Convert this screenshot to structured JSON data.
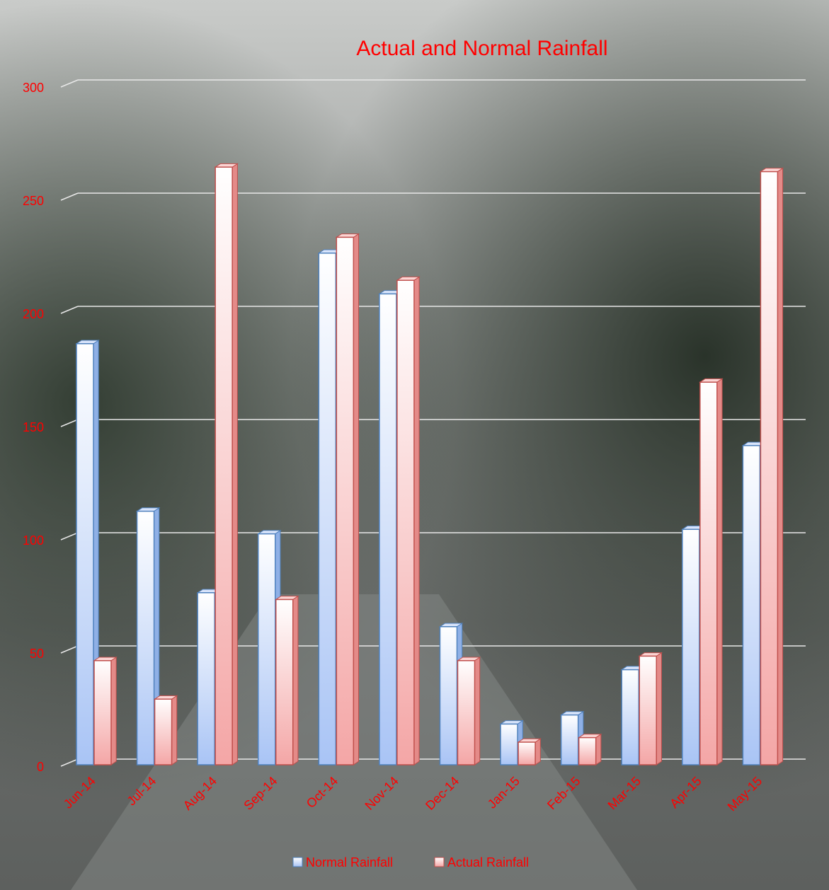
{
  "colors": {
    "title": "#ff0000",
    "axis_labels": "#ff0000",
    "normal_face_top": "#ffffff",
    "normal_face_bottom": "#a9c4f5",
    "normal_edge": "#4f81bd",
    "actual_face_top": "#ffffff",
    "actual_face_bottom": "#f4a6a6",
    "actual_edge": "#c0504d",
    "gridline": "#e8e8e8",
    "legend_text": "#ff0000"
  },
  "chart_data": {
    "type": "bar",
    "title": "Actual and Normal Rainfall",
    "xlabel": "",
    "ylabel": "",
    "ylim": [
      0,
      300
    ],
    "yticks": [
      0,
      50,
      100,
      150,
      200,
      250,
      300
    ],
    "grid": true,
    "legend_position": "bottom",
    "categories": [
      "Jun-14",
      "Jul-14",
      "Aug-14",
      "Sep-14",
      "Oct-14",
      "Nov-14",
      "Dec-14",
      "Jan-15",
      "Feb-15",
      "Mar-15",
      "Apr-15",
      "May-15"
    ],
    "series": [
      {
        "name": "Normal Rainfall",
        "values": [
          186,
          112,
          76,
          102,
          226,
          208,
          61,
          18,
          22,
          42,
          104,
          141
        ]
      },
      {
        "name": "Actual Rainfall",
        "values": [
          46,
          29,
          264,
          73,
          233,
          214,
          46,
          10,
          12,
          48,
          169,
          262
        ]
      }
    ]
  }
}
